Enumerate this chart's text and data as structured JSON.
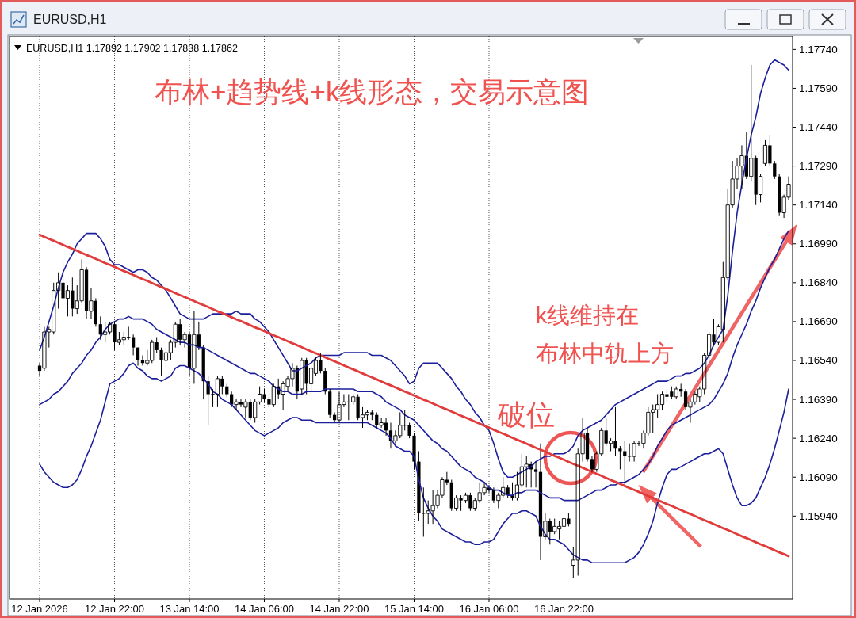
{
  "chart_data": {
    "type": "candlestick",
    "title": "布林+趋势线+k线形态，交易示意图",
    "categories": [
      "12 Jan 2026",
      null,
      null,
      null,
      null,
      null,
      null,
      null,
      null,
      null,
      null,
      null,
      null,
      null,
      null,
      null,
      "12 Jan 22:00",
      null,
      null,
      null,
      null,
      null,
      null,
      null,
      null,
      null,
      null,
      null,
      null,
      null,
      null,
      null,
      "13 Jan 14:00",
      null,
      null,
      null,
      null,
      null,
      null,
      null,
      null,
      null,
      null,
      null,
      null,
      null,
      null,
      null,
      "14 Jan 06:00",
      null,
      null,
      null,
      null,
      null,
      null,
      null,
      null,
      null,
      null,
      null,
      null,
      null,
      null,
      null,
      "14 Jan 22:00",
      null,
      null,
      null,
      null,
      null,
      null,
      null,
      null,
      null,
      null,
      null,
      null,
      null,
      null,
      null,
      "15 Jan 14:00",
      null,
      null,
      null,
      null,
      null,
      null,
      null,
      null,
      null,
      null,
      null,
      null,
      null,
      null,
      null,
      "16 Jan 06:00",
      null,
      null,
      null,
      null,
      null,
      null,
      null,
      null,
      null,
      null,
      null,
      null,
      null,
      null,
      null,
      "16 Jan 22:00",
      null,
      null,
      null,
      null,
      null,
      null,
      null,
      null,
      null,
      null,
      null,
      null,
      null,
      null,
      null,
      null,
      null,
      null,
      null,
      null,
      null,
      null,
      null,
      null,
      null,
      null,
      null,
      null,
      null,
      null,
      null,
      null,
      null,
      null,
      null,
      null,
      null,
      null,
      null,
      null,
      null,
      null,
      null,
      null,
      null,
      null,
      null,
      null
    ],
    "ohlc": [
      [
        1.1652,
        1.1653,
        1.1648,
        1.165
      ],
      [
        1.1651,
        1.1667,
        1.165,
        1.1665
      ],
      [
        1.1665,
        1.1667,
        1.1659,
        1.1666
      ],
      [
        1.1665,
        1.1684,
        1.1664,
        1.1681
      ],
      [
        1.1681,
        1.1688,
        1.1674,
        1.1684
      ],
      [
        1.1684,
        1.1692,
        1.1677,
        1.1678
      ],
      [
        1.1678,
        1.1683,
        1.1671,
        1.1681
      ],
      [
        1.1681,
        1.1686,
        1.1671,
        1.1674
      ],
      [
        1.1674,
        1.1683,
        1.1672,
        1.1677
      ],
      [
        1.1677,
        1.1693,
        1.1676,
        1.1689
      ],
      [
        1.1689,
        1.169,
        1.167,
        1.1673
      ],
      [
        1.1673,
        1.1682,
        1.167,
        1.1677
      ],
      [
        1.1677,
        1.1678,
        1.1667,
        1.1668
      ],
      [
        1.1668,
        1.1671,
        1.1662,
        1.1664
      ],
      [
        1.1664,
        1.1669,
        1.1661,
        1.1665
      ],
      [
        1.1665,
        1.1669,
        1.1664,
        1.1668
      ],
      [
        1.1668,
        1.1669,
        1.1658,
        1.1661
      ],
      [
        1.1661,
        1.1665,
        1.166,
        1.1662
      ],
      [
        1.1662,
        1.1665,
        1.166,
        1.1663
      ],
      [
        1.1663,
        1.1667,
        1.1662,
        1.1663
      ],
      [
        1.1663,
        1.1664,
        1.1656,
        1.1659
      ],
      [
        1.1659,
        1.1659,
        1.1652,
        1.1654
      ],
      [
        1.1654,
        1.1656,
        1.1652,
        1.1653
      ],
      [
        1.1653,
        1.1658,
        1.1652,
        1.1654
      ],
      [
        1.1654,
        1.1662,
        1.1653,
        1.1661
      ],
      [
        1.1661,
        1.1663,
        1.1657,
        1.1658
      ],
      [
        1.1658,
        1.1659,
        1.1648,
        1.1654
      ],
      [
        1.1654,
        1.166,
        1.1651,
        1.1657
      ],
      [
        1.1657,
        1.1662,
        1.1654,
        1.1661
      ],
      [
        1.1661,
        1.1669,
        1.1659,
        1.1668
      ],
      [
        1.1668,
        1.167,
        1.166,
        1.1662
      ],
      [
        1.1662,
        1.1665,
        1.1659,
        1.1664
      ],
      [
        1.1664,
        1.1665,
        1.1648,
        1.1651
      ],
      [
        1.1651,
        1.1673,
        1.1645,
        1.1664
      ],
      [
        1.1664,
        1.1669,
        1.1658,
        1.1659
      ],
      [
        1.1659,
        1.166,
        1.1639,
        1.1646
      ],
      [
        1.1646,
        1.1648,
        1.1629,
        1.1641
      ],
      [
        1.1641,
        1.1643,
        1.1636,
        1.1641
      ],
      [
        1.1641,
        1.1648,
        1.1636,
        1.1647
      ],
      [
        1.1647,
        1.1648,
        1.1641,
        1.1644
      ],
      [
        1.1644,
        1.1645,
        1.164,
        1.1641
      ],
      [
        1.1641,
        1.1642,
        1.1636,
        1.1637
      ],
      [
        1.1637,
        1.1639,
        1.1635,
        1.1638
      ],
      [
        1.1638,
        1.1639,
        1.1636,
        1.1637
      ],
      [
        1.1636,
        1.1639,
        1.1632,
        1.1638
      ],
      [
        1.1638,
        1.1639,
        1.1631,
        1.1632
      ],
      [
        1.1632,
        1.1639,
        1.163,
        1.1638
      ],
      [
        1.1638,
        1.1644,
        1.1637,
        1.1641
      ],
      [
        1.1641,
        1.1643,
        1.1638,
        1.1639
      ],
      [
        1.1639,
        1.164,
        1.1636,
        1.1637
      ],
      [
        1.1637,
        1.1645,
        1.1636,
        1.1644
      ],
      [
        1.1644,
        1.1647,
        1.1639,
        1.1641
      ],
      [
        1.1641,
        1.1646,
        1.1635,
        1.1645
      ],
      [
        1.1644,
        1.1648,
        1.1642,
        1.1647
      ],
      [
        1.1647,
        1.1653,
        1.1644,
        1.1651
      ],
      [
        1.1651,
        1.1652,
        1.1639,
        1.1642
      ],
      [
        1.1643,
        1.1655,
        1.1641,
        1.1654
      ],
      [
        1.1654,
        1.1655,
        1.1641,
        1.1645
      ],
      [
        1.1645,
        1.1652,
        1.1642,
        1.1651
      ],
      [
        1.1649,
        1.1655,
        1.1648,
        1.1654
      ],
      [
        1.1654,
        1.1657,
        1.1649,
        1.165
      ],
      [
        1.165,
        1.1651,
        1.1641,
        1.1642
      ],
      [
        1.1642,
        1.1643,
        1.1632,
        1.1633
      ],
      [
        1.1633,
        1.1634,
        1.163,
        1.1631
      ],
      [
        1.1631,
        1.1642,
        1.163,
        1.1637
      ],
      [
        1.1637,
        1.1641,
        1.1636,
        1.1638
      ],
      [
        1.1638,
        1.1641,
        1.1631,
        1.1638
      ],
      [
        1.1638,
        1.1641,
        1.1637,
        1.164
      ],
      [
        1.164,
        1.1641,
        1.1631,
        1.1632
      ],
      [
        1.1632,
        1.1636,
        1.1628,
        1.1633
      ],
      [
        1.1633,
        1.1635,
        1.1631,
        1.1634
      ],
      [
        1.1634,
        1.1635,
        1.1631,
        1.1633
      ],
      [
        1.1633,
        1.1634,
        1.1628,
        1.1629
      ],
      [
        1.1629,
        1.1632,
        1.1628,
        1.163
      ],
      [
        1.163,
        1.1632,
        1.1625,
        1.1627
      ],
      [
        1.1627,
        1.163,
        1.162,
        1.1623
      ],
      [
        1.1623,
        1.1627,
        1.1622,
        1.1625
      ],
      [
        1.1625,
        1.1634,
        1.1624,
        1.1629
      ],
      [
        1.1629,
        1.1635,
        1.1627,
        1.1629
      ],
      [
        1.1629,
        1.163,
        1.1624,
        1.1625
      ],
      [
        1.1625,
        1.1626,
        1.1612,
        1.1615
      ],
      [
        1.1615,
        1.1619,
        1.1592,
        1.1595
      ],
      [
        1.1595,
        1.1605,
        1.1586,
        1.1595
      ],
      [
        1.1595,
        1.16,
        1.1591,
        1.1596
      ],
      [
        1.1596,
        1.1604,
        1.1591,
        1.1598
      ],
      [
        1.1598,
        1.1604,
        1.1597,
        1.1602
      ],
      [
        1.1602,
        1.1609,
        1.1601,
        1.1608
      ],
      [
        1.1608,
        1.1611,
        1.1606,
        1.1607
      ],
      [
        1.1607,
        1.1608,
        1.1596,
        1.1597
      ],
      [
        1.1597,
        1.1602,
        1.1596,
        1.1601
      ],
      [
        1.1601,
        1.1602,
        1.1596,
        1.16
      ],
      [
        1.16,
        1.1603,
        1.1599,
        1.1602
      ],
      [
        1.1602,
        1.1603,
        1.1596,
        1.1597
      ],
      [
        1.1597,
        1.1601,
        1.1596,
        1.16
      ],
      [
        1.16,
        1.1607,
        1.1599,
        1.1603
      ],
      [
        1.1603,
        1.1607,
        1.1602,
        1.1605
      ],
      [
        1.1605,
        1.1606,
        1.1603,
        1.1604
      ],
      [
        1.1604,
        1.1605,
        1.1599,
        1.16
      ],
      [
        1.16,
        1.1603,
        1.1597,
        1.1602
      ],
      [
        1.1602,
        1.1609,
        1.1601,
        1.1605
      ],
      [
        1.1605,
        1.1606,
        1.1601,
        1.1602
      ],
      [
        1.1602,
        1.1607,
        1.16,
        1.1601
      ],
      [
        1.1601,
        1.1611,
        1.16,
        1.1606
      ],
      [
        1.1606,
        1.1618,
        1.1605,
        1.1613
      ],
      [
        1.1613,
        1.1617,
        1.1605,
        1.1614
      ],
      [
        1.1614,
        1.1615,
        1.1605,
        1.1612
      ],
      [
        1.1612,
        1.1615,
        1.1605,
        1.1611
      ],
      [
        1.1611,
        1.1622,
        1.1577,
        1.1586
      ],
      [
        1.1586,
        1.1595,
        1.1585,
        1.1592
      ],
      [
        1.1592,
        1.1593,
        1.1583,
        1.1588
      ],
      [
        1.1588,
        1.1593,
        1.1587,
        1.159
      ],
      [
        1.1589,
        1.1592,
        1.1585,
        1.159
      ],
      [
        1.159,
        1.1595,
        1.1589,
        1.1593
      ],
      [
        1.1593,
        1.1595,
        1.159,
        1.1591
      ],
      [
        1.1575,
        1.1582,
        1.157,
        1.1577
      ],
      [
        1.1577,
        1.162,
        1.1571,
        1.1618
      ],
      [
        1.1618,
        1.1632,
        1.1615,
        1.1626
      ],
      [
        1.1626,
        1.1628,
        1.1615,
        1.1616
      ],
      [
        1.1616,
        1.1617,
        1.1611,
        1.1612
      ],
      [
        1.1612,
        1.1619,
        1.1611,
        1.1618
      ],
      [
        1.1618,
        1.1628,
        1.1617,
        1.1627
      ],
      [
        1.1627,
        1.1632,
        1.1621,
        1.1622
      ],
      [
        1.1622,
        1.1624,
        1.1619,
        1.1623
      ],
      [
        1.1623,
        1.1636,
        1.1617,
        1.162
      ],
      [
        1.162,
        1.1621,
        1.1612,
        1.1619
      ],
      [
        1.1619,
        1.1623,
        1.1606,
        1.1617
      ],
      [
        1.1617,
        1.1622,
        1.1615,
        1.1617
      ],
      [
        1.1617,
        1.1623,
        1.1615,
        1.1622
      ],
      [
        1.1622,
        1.1623,
        1.1621,
        1.1622
      ],
      [
        1.1622,
        1.1627,
        1.162,
        1.1626
      ],
      [
        1.1626,
        1.1636,
        1.1625,
        1.1634
      ],
      [
        1.1634,
        1.1637,
        1.1626,
        1.1635
      ],
      [
        1.1635,
        1.1641,
        1.1632,
        1.1637
      ],
      [
        1.1637,
        1.1642,
        1.1635,
        1.1641
      ],
      [
        1.1641,
        1.1643,
        1.1638,
        1.164
      ],
      [
        1.1642,
        1.1644,
        1.1639,
        1.164
      ],
      [
        1.164,
        1.1644,
        1.1639,
        1.1643
      ],
      [
        1.1643,
        1.1645,
        1.164,
        1.1642
      ],
      [
        1.1642,
        1.1643,
        1.1635,
        1.1636
      ],
      [
        1.1636,
        1.1639,
        1.163,
        1.1638
      ],
      [
        1.1638,
        1.1642,
        1.1637,
        1.1641
      ],
      [
        1.164,
        1.1644,
        1.1638,
        1.1643
      ],
      [
        1.1643,
        1.1657,
        1.1641,
        1.1656
      ],
      [
        1.1656,
        1.1665,
        1.1653,
        1.1664
      ],
      [
        1.1664,
        1.167,
        1.166,
        1.1661
      ],
      [
        1.1661,
        1.1668,
        1.166,
        1.1667
      ],
      [
        1.1666,
        1.1692,
        1.1661,
        1.1686
      ],
      [
        1.1686,
        1.172,
        1.1685,
        1.1714
      ],
      [
        1.1714,
        1.1731,
        1.1713,
        1.1724
      ],
      [
        1.1724,
        1.1732,
        1.172,
        1.1729
      ],
      [
        1.1729,
        1.1737,
        1.172,
        1.1733
      ],
      [
        1.1733,
        1.1742,
        1.1724,
        1.1725
      ],
      [
        1.1725,
        1.1768,
        1.1723,
        1.1732
      ],
      [
        1.1732,
        1.1733,
        1.1714,
        1.1718
      ],
      [
        1.1718,
        1.1726,
        1.1715,
        1.1725
      ],
      [
        1.173,
        1.1739,
        1.1729,
        1.1737
      ],
      [
        1.1737,
        1.1741,
        1.1729,
        1.173
      ],
      [
        1.173,
        1.1731,
        1.1724,
        1.1725
      ],
      [
        1.1725,
        1.1726,
        1.171,
        1.1711
      ],
      [
        1.1711,
        1.1718,
        1.1709,
        1.1717
      ],
      [
        1.1717,
        1.1725,
        1.1716,
        1.1722
      ]
    ],
    "color": "#000000",
    "series": [
      {
        "type": "line",
        "color": "#1c1f9c",
        "values": [
          1.1658,
          1.1663,
          1.1669,
          1.1675,
          1.1682,
          1.1688,
          1.1692,
          1.1695,
          1.1699,
          1.1701,
          1.1703,
          1.1703,
          1.1703,
          1.1701,
          1.1698,
          1.1693,
          1.1691,
          1.1691,
          1.169,
          1.1689,
          1.1688,
          1.1689,
          1.1689,
          1.1688,
          1.1686,
          1.1685,
          1.1683,
          1.1681,
          1.1678,
          1.1675,
          1.1672,
          1.1671,
          1.167,
          1.167,
          1.167,
          1.167,
          1.1671,
          1.1672,
          1.1672,
          1.1672,
          1.1672,
          1.1672,
          1.1673,
          1.1672,
          1.1672,
          1.1672,
          1.167,
          1.1669,
          1.1667,
          1.1665,
          1.1662,
          1.1659,
          1.1656,
          1.1653,
          1.165,
          1.165,
          1.1651,
          1.1652,
          1.1653,
          1.1655,
          1.1656,
          1.1656,
          1.1656,
          1.1656,
          1.1656,
          1.1657,
          1.1657,
          1.1657,
          1.1657,
          1.1657,
          1.1657,
          1.1656,
          1.1656,
          1.1656,
          1.1655,
          1.1654,
          1.1652,
          1.165,
          1.1648,
          1.1645,
          1.1646,
          1.1651,
          1.1653,
          1.1653,
          1.1653,
          1.1653,
          1.1651,
          1.1649,
          1.1647,
          1.1644,
          1.1642,
          1.1639,
          1.1637,
          1.1634,
          1.1632,
          1.1629,
          1.1627,
          1.1622,
          1.1616,
          1.1611,
          1.1609,
          1.1609,
          1.161,
          1.1611,
          1.1612,
          1.1613,
          1.1615,
          1.1616,
          1.1617,
          1.1617,
          1.1618,
          1.1618,
          1.1618,
          1.1619,
          1.1621,
          1.1625,
          1.1627,
          1.1628,
          1.1629,
          1.163,
          1.1631,
          1.1633,
          1.1635,
          1.1637,
          1.1638,
          1.1639,
          1.164,
          1.1641,
          1.1642,
          1.1643,
          1.1644,
          1.1645,
          1.1646,
          1.1646,
          1.1646,
          1.1647,
          1.1648,
          1.1648,
          1.1649,
          1.1649,
          1.165,
          1.1651,
          1.1653,
          1.1656,
          1.166,
          1.1663,
          1.1666,
          1.1679,
          1.1696,
          1.1711,
          1.1722,
          1.1732,
          1.1741,
          1.1748,
          1.1757,
          1.1763,
          1.1768,
          1.177,
          1.1769,
          1.1768,
          1.1766
        ]
      },
      {
        "type": "line",
        "color": "#1c1f9c",
        "values": [
          1.1637,
          1.1638,
          1.1639,
          1.1641,
          1.1642,
          1.1644,
          1.1646,
          1.1649,
          1.1651,
          1.1653,
          1.1656,
          1.1658,
          1.1661,
          1.1663,
          1.1666,
          1.1668,
          1.1669,
          1.167,
          1.167,
          1.1671,
          1.167,
          1.167,
          1.167,
          1.1669,
          1.1668,
          1.1666,
          1.1665,
          1.1664,
          1.1663,
          1.1662,
          1.1661,
          1.1661,
          1.166,
          1.166,
          1.1659,
          1.1659,
          1.1658,
          1.1657,
          1.1656,
          1.1655,
          1.1654,
          1.1653,
          1.1652,
          1.1651,
          1.165,
          1.1649,
          1.1649,
          1.1648,
          1.1647,
          1.1646,
          1.1644,
          1.1643,
          1.1642,
          1.1642,
          1.1641,
          1.1641,
          1.1641,
          1.1642,
          1.1642,
          1.1642,
          1.1642,
          1.1643,
          1.1643,
          1.1643,
          1.1643,
          1.1643,
          1.1643,
          1.1643,
          1.1642,
          1.1642,
          1.1642,
          1.1642,
          1.1641,
          1.164,
          1.1638,
          1.1637,
          1.1636,
          1.1635,
          1.1633,
          1.1632,
          1.1631,
          1.1629,
          1.1627,
          1.1625,
          1.1623,
          1.1622,
          1.162,
          1.1619,
          1.1617,
          1.1615,
          1.1613,
          1.1612,
          1.1611,
          1.1609,
          1.1608,
          1.1607,
          1.1605,
          1.1604,
          1.1604,
          1.1603,
          1.1602,
          1.1602,
          1.1603,
          1.1603,
          1.1604,
          1.1604,
          1.1604,
          1.1603,
          1.1602,
          1.1601,
          1.1601,
          1.1601,
          1.16,
          1.16,
          1.16,
          1.16,
          1.1601,
          1.1602,
          1.1603,
          1.1604,
          1.1604,
          1.1605,
          1.1606,
          1.1606,
          1.1607,
          1.1607,
          1.1608,
          1.1609,
          1.161,
          1.1612,
          1.1614,
          1.1617,
          1.1621,
          1.1624,
          1.1627,
          1.1629,
          1.163,
          1.1631,
          1.1632,
          1.1633,
          1.1634,
          1.1635,
          1.1636,
          1.1637,
          1.1639,
          1.1642,
          1.1645,
          1.1649,
          1.1655,
          1.166,
          1.1664,
          1.1668,
          1.1673,
          1.1677,
          1.1682,
          1.1686,
          1.169,
          1.1693,
          1.1697,
          1.1701,
          1.1704
        ]
      },
      {
        "type": "line",
        "color": "#1c1f9c",
        "values": [
          1.1614,
          1.1611,
          1.1609,
          1.1607,
          1.1606,
          1.1605,
          1.1605,
          1.1606,
          1.1608,
          1.1612,
          1.1617,
          1.1621,
          1.1626,
          1.1631,
          1.1638,
          1.1645,
          1.1646,
          1.1647,
          1.1649,
          1.1652,
          1.1653,
          1.1651,
          1.165,
          1.1648,
          1.1647,
          1.1647,
          1.1646,
          1.1647,
          1.1648,
          1.1651,
          1.1652,
          1.1652,
          1.1651,
          1.165,
          1.1649,
          1.1647,
          1.1645,
          1.1642,
          1.1641,
          1.1639,
          1.1638,
          1.1637,
          1.1635,
          1.1633,
          1.1631,
          1.1629,
          1.1627,
          1.1626,
          1.1625,
          1.1626,
          1.1627,
          1.1628,
          1.163,
          1.1631,
          1.1632,
          1.1632,
          1.1631,
          1.1631,
          1.1631,
          1.163,
          1.163,
          1.163,
          1.163,
          1.163,
          1.163,
          1.163,
          1.163,
          1.163,
          1.163,
          1.163,
          1.163,
          1.1629,
          1.1628,
          1.1627,
          1.1626,
          1.1624,
          1.1621,
          1.162,
          1.1619,
          1.1619,
          1.1617,
          1.1608,
          1.1601,
          1.1597,
          1.1594,
          1.1592,
          1.1589,
          1.1588,
          1.1587,
          1.1586,
          1.1585,
          1.1584,
          1.1584,
          1.1583,
          1.1583,
          1.1584,
          1.1584,
          1.1585,
          1.1588,
          1.1591,
          1.1593,
          1.1595,
          1.1595,
          1.1596,
          1.1596,
          1.1595,
          1.1594,
          1.159,
          1.1587,
          1.1585,
          1.1585,
          1.1584,
          1.1583,
          1.1581,
          1.1579,
          1.1578,
          1.1577,
          1.1577,
          1.1576,
          1.1576,
          1.1576,
          1.1576,
          1.1576,
          1.1576,
          1.1576,
          1.1576,
          1.1577,
          1.1578,
          1.158,
          1.1583,
          1.1587,
          1.1592,
          1.1599,
          1.1605,
          1.161,
          1.1612,
          1.1612,
          1.1613,
          1.1614,
          1.1615,
          1.1616,
          1.1617,
          1.1618,
          1.1618,
          1.1619,
          1.162,
          1.1618,
          1.1612,
          1.1606,
          1.1601,
          1.1598,
          1.1598,
          1.1599,
          1.1601,
          1.1605,
          1.1609,
          1.1614,
          1.162,
          1.1627,
          1.1634,
          1.1643
        ]
      },
      {
        "type": "line",
        "color": "#e23b3b",
        "values": [
          1.17025,
          1.17017,
          1.17009,
          1.17002,
          1.16994,
          1.16986,
          1.16978,
          1.16971,
          1.16963,
          1.16955,
          1.16947,
          1.1694,
          1.16932,
          1.16924,
          1.16916,
          1.16909,
          1.16901,
          1.16893,
          1.16885,
          1.16878,
          1.1687,
          1.16862,
          1.16854,
          1.16847,
          1.16839,
          1.16831,
          1.16823,
          1.16816,
          1.16808,
          1.168,
          1.16792,
          1.16785,
          1.16777,
          1.16769,
          1.16761,
          1.16754,
          1.16746,
          1.16738,
          1.1673,
          1.16723,
          1.16715,
          1.16707,
          1.16699,
          1.16692,
          1.16684,
          1.16676,
          1.16668,
          1.16661,
          1.16653,
          1.16645,
          1.16637,
          1.1663,
          1.16622,
          1.16614,
          1.16606,
          1.16599,
          1.16591,
          1.16583,
          1.16575,
          1.16568,
          1.1656,
          1.16552,
          1.16544,
          1.16537,
          1.16529,
          1.16521,
          1.16513,
          1.16506,
          1.16498,
          1.1649,
          1.16482,
          1.16475,
          1.16467,
          1.16459,
          1.16451,
          1.16444,
          1.16436,
          1.16428,
          1.1642,
          1.16413,
          1.16405,
          1.16397,
          1.16389,
          1.16382,
          1.16374,
          1.16366,
          1.16358,
          1.16351,
          1.16343,
          1.16335,
          1.16327,
          1.1632,
          1.16312,
          1.16304,
          1.16296,
          1.16289,
          1.16281,
          1.16273,
          1.16265,
          1.16258,
          1.1625,
          1.16242,
          1.16234,
          1.16227,
          1.16219,
          1.16211,
          1.16203,
          1.16196,
          1.16188,
          1.1618,
          1.16172,
          1.16165,
          1.16157,
          1.16149,
          1.16141,
          1.16134,
          1.16126,
          1.16118,
          1.1611,
          1.16103,
          1.16095,
          1.16087,
          1.16079,
          1.16072,
          1.16064,
          1.16056,
          1.16048,
          1.16041,
          1.16033,
          1.16025,
          1.16017,
          1.1601,
          1.16002,
          1.15994,
          1.15986,
          1.15979,
          1.15971,
          1.15963,
          1.15955,
          1.15948,
          1.1594,
          1.15932,
          1.15924,
          1.15917,
          1.15909,
          1.15901,
          1.15893,
          1.15886,
          1.15878,
          1.1587,
          1.15862,
          1.15855,
          1.15847,
          1.15839,
          1.15831,
          1.15824,
          1.15816,
          1.15808,
          1.158,
          1.15793,
          1.15785
        ]
      }
    ],
    "ylim": [
      1.1562,
      1.1779
    ],
    "yticks": [
      {
        "value": 1.1594,
        "label": "1.15940"
      },
      {
        "value": 1.1609,
        "label": "1.16090"
      },
      {
        "value": 1.1624,
        "label": "1.16240"
      },
      {
        "value": 1.1639,
        "label": "1.16390"
      },
      {
        "value": 1.1654,
        "label": "1.16540"
      },
      {
        "value": 1.1669,
        "label": "1.16690"
      },
      {
        "value": 1.1684,
        "label": "1.16840"
      },
      {
        "value": 1.1699,
        "label": "1.16990"
      },
      {
        "value": 1.1714,
        "label": "1.17140"
      },
      {
        "value": 1.1729,
        "label": "1.17290"
      },
      {
        "value": 1.1744,
        "label": "1.17440"
      },
      {
        "value": 1.1759,
        "label": "1.17590"
      },
      {
        "value": 1.1774,
        "label": "1.17740"
      }
    ],
    "grid": "x",
    "annotations": [
      "EURUSD,H1",
      "EURUSD,H1 1.17892 1.17902 1.17838 1.17862",
      "破位",
      "k线维持在",
      "布林中轨上方"
    ]
  }
}
